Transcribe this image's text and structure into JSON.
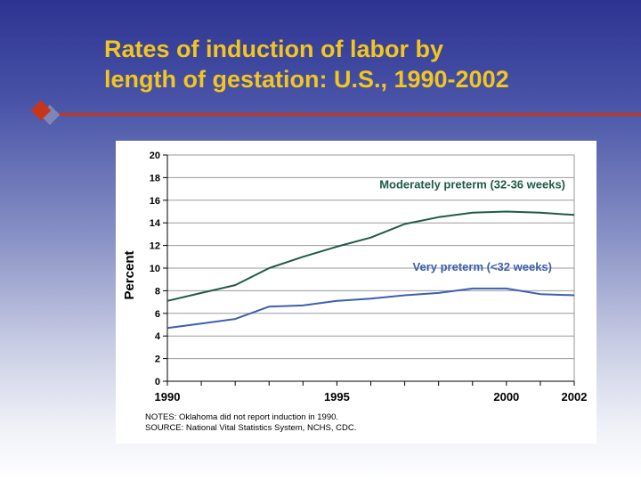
{
  "slide": {
    "title_line1": "Rates of induction of labor by",
    "title_line2": "length of gestation: U.S., 1990-2002",
    "accent_color": "#c8361a",
    "title_color": "#f2c61f"
  },
  "notes": {
    "line1": "NOTES: Oklahoma did not report induction in 1990.",
    "line2": "SOURCE: National Vital Statistics System, NCHS, CDC."
  },
  "chart_data": {
    "type": "line",
    "title": "",
    "xlabel": "",
    "ylabel": "Percent",
    "x": [
      1990,
      1991,
      1992,
      1993,
      1994,
      1995,
      1996,
      1997,
      1998,
      1999,
      2000,
      2001,
      2002
    ],
    "xlim": [
      1990,
      2002
    ],
    "ylim": [
      0,
      20
    ],
    "yticks": [
      0,
      2,
      4,
      6,
      8,
      10,
      12,
      14,
      16,
      18,
      20
    ],
    "xtick_labels": [
      {
        "value": 1990,
        "label": "1990"
      },
      {
        "value": 1995,
        "label": "1995"
      },
      {
        "value": 2000,
        "label": "2000"
      },
      {
        "value": 2002,
        "label": "2002"
      }
    ],
    "grid": "horizontal",
    "series": [
      {
        "name": "Moderately preterm (32-36 weeks)",
        "color": "#1f5a4a",
        "values": [
          7.1,
          7.8,
          8.5,
          10.0,
          11.0,
          11.9,
          12.7,
          13.9,
          14.5,
          14.9,
          15.0,
          14.9,
          14.7
        ]
      },
      {
        "name": "Very preterm (<32 weeks)",
        "color": "#3d5fb0",
        "values": [
          4.7,
          5.1,
          5.5,
          6.6,
          6.7,
          7.1,
          7.3,
          7.6,
          7.8,
          8.2,
          8.2,
          7.7,
          7.6
        ]
      }
    ]
  }
}
